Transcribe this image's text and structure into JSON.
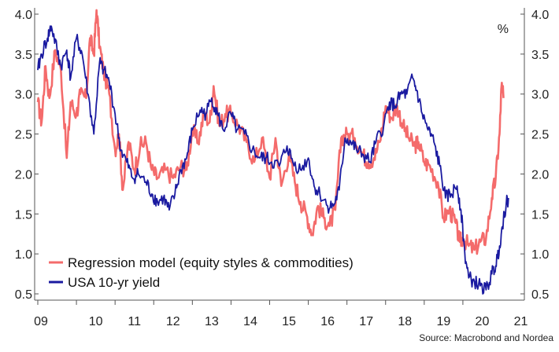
{
  "chart_data": {
    "type": "line",
    "title": "",
    "unit_label": "%",
    "source": "Source: Macrobond and Nordea",
    "ylim": [
      0.5,
      4.0
    ],
    "yticks": [
      "0.5",
      "1.0",
      "1.5",
      "2.0",
      "2.5",
      "3.0",
      "3.5",
      "4.0"
    ],
    "xlim": [
      2009.0,
      2021.5
    ],
    "xticks": [
      "09",
      "10",
      "11",
      "12",
      "13",
      "14",
      "15",
      "16",
      "17",
      "18",
      "19",
      "20",
      "21"
    ],
    "grid": false,
    "legend_position": "bottom-left",
    "colors": {
      "regression": "#f46b6b",
      "yield": "#1a1aa0",
      "axis": "#555555"
    },
    "series": [
      {
        "key": "regression",
        "name": "Regression model (equity styles & commodities)",
        "color": "#f46b6b",
        "points": [
          [
            2009.0,
            2.9
          ],
          [
            2009.1,
            2.65
          ],
          [
            2009.2,
            3.35
          ],
          [
            2009.3,
            2.95
          ],
          [
            2009.45,
            3.55
          ],
          [
            2009.6,
            3.3
          ],
          [
            2009.75,
            2.2
          ],
          [
            2009.85,
            2.9
          ],
          [
            2010.0,
            2.75
          ],
          [
            2010.1,
            3.0
          ],
          [
            2010.25,
            2.95
          ],
          [
            2010.35,
            3.7
          ],
          [
            2010.45,
            3.5
          ],
          [
            2010.52,
            4.05
          ],
          [
            2010.6,
            3.6
          ],
          [
            2010.7,
            3.3
          ],
          [
            2010.85,
            3.0
          ],
          [
            2011.0,
            2.3
          ],
          [
            2011.1,
            2.5
          ],
          [
            2011.2,
            1.8
          ],
          [
            2011.35,
            2.4
          ],
          [
            2011.5,
            2.05
          ],
          [
            2011.65,
            2.35
          ],
          [
            2011.8,
            2.4
          ],
          [
            2011.95,
            2.05
          ],
          [
            2012.1,
            1.95
          ],
          [
            2012.3,
            2.05
          ],
          [
            2012.5,
            1.95
          ],
          [
            2012.7,
            2.1
          ],
          [
            2012.85,
            2.05
          ],
          [
            2013.0,
            2.55
          ],
          [
            2013.15,
            2.4
          ],
          [
            2013.3,
            2.75
          ],
          [
            2013.45,
            2.65
          ],
          [
            2013.55,
            3.1
          ],
          [
            2013.7,
            2.6
          ],
          [
            2013.85,
            2.75
          ],
          [
            2014.0,
            2.75
          ],
          [
            2014.2,
            2.6
          ],
          [
            2014.4,
            2.4
          ],
          [
            2014.6,
            2.15
          ],
          [
            2014.8,
            2.45
          ],
          [
            2015.0,
            1.95
          ],
          [
            2015.15,
            2.45
          ],
          [
            2015.3,
            1.85
          ],
          [
            2015.5,
            2.25
          ],
          [
            2015.65,
            1.9
          ],
          [
            2015.8,
            1.65
          ],
          [
            2015.95,
            1.5
          ],
          [
            2016.1,
            1.25
          ],
          [
            2016.25,
            1.6
          ],
          [
            2016.4,
            1.45
          ],
          [
            2016.55,
            1.35
          ],
          [
            2016.7,
            1.55
          ],
          [
            2016.85,
            2.45
          ],
          [
            2017.0,
            2.5
          ],
          [
            2017.2,
            2.45
          ],
          [
            2017.4,
            2.25
          ],
          [
            2017.55,
            2.15
          ],
          [
            2017.7,
            2.2
          ],
          [
            2017.85,
            2.4
          ],
          [
            2018.0,
            2.85
          ],
          [
            2018.15,
            2.7
          ],
          [
            2018.3,
            2.85
          ],
          [
            2018.45,
            2.6
          ],
          [
            2018.6,
            2.45
          ],
          [
            2018.75,
            2.35
          ],
          [
            2018.85,
            2.4
          ],
          [
            2019.0,
            2.15
          ],
          [
            2019.15,
            2.1
          ],
          [
            2019.35,
            1.9
          ],
          [
            2019.5,
            1.45
          ],
          [
            2019.65,
            1.55
          ],
          [
            2019.8,
            1.4
          ],
          [
            2019.92,
            1.15
          ],
          [
            2020.0,
            1.2
          ],
          [
            2020.15,
            1.1
          ],
          [
            2020.3,
            1.05
          ],
          [
            2020.45,
            1.15
          ],
          [
            2020.6,
            1.2
          ],
          [
            2020.75,
            1.7
          ],
          [
            2020.85,
            1.95
          ],
          [
            2020.95,
            2.5
          ],
          [
            2021.0,
            3.1
          ],
          [
            2021.05,
            2.95
          ]
        ]
      },
      {
        "key": "yield",
        "name": "USA 10-yr yield",
        "color": "#1a1aa0",
        "points": [
          [
            2009.0,
            3.3
          ],
          [
            2009.1,
            3.5
          ],
          [
            2009.25,
            3.7
          ],
          [
            2009.35,
            3.85
          ],
          [
            2009.5,
            3.55
          ],
          [
            2009.6,
            3.35
          ],
          [
            2009.75,
            3.55
          ],
          [
            2009.85,
            3.2
          ],
          [
            2010.0,
            3.7
          ],
          [
            2010.15,
            3.5
          ],
          [
            2010.3,
            3.0
          ],
          [
            2010.45,
            2.5
          ],
          [
            2010.6,
            3.4
          ],
          [
            2010.7,
            3.3
          ],
          [
            2010.85,
            3.15
          ],
          [
            2011.0,
            2.75
          ],
          [
            2011.15,
            2.3
          ],
          [
            2011.3,
            2.15
          ],
          [
            2011.45,
            1.95
          ],
          [
            2011.6,
            2.0
          ],
          [
            2011.8,
            1.9
          ],
          [
            2011.95,
            1.75
          ],
          [
            2012.1,
            1.65
          ],
          [
            2012.25,
            1.7
          ],
          [
            2012.4,
            1.55
          ],
          [
            2012.55,
            1.75
          ],
          [
            2012.7,
            2.05
          ],
          [
            2012.85,
            2.2
          ],
          [
            2013.0,
            2.55
          ],
          [
            2013.2,
            2.8
          ],
          [
            2013.35,
            2.75
          ],
          [
            2013.5,
            2.95
          ],
          [
            2013.65,
            2.75
          ],
          [
            2013.8,
            2.55
          ],
          [
            2014.0,
            2.75
          ],
          [
            2014.15,
            2.55
          ],
          [
            2014.35,
            2.5
          ],
          [
            2014.55,
            2.3
          ],
          [
            2014.75,
            2.2
          ],
          [
            2014.9,
            2.2
          ],
          [
            2015.05,
            2.15
          ],
          [
            2015.25,
            2.1
          ],
          [
            2015.45,
            2.35
          ],
          [
            2015.6,
            2.15
          ],
          [
            2015.8,
            2.05
          ],
          [
            2016.0,
            2.2
          ],
          [
            2016.15,
            1.85
          ],
          [
            2016.3,
            1.75
          ],
          [
            2016.5,
            1.6
          ],
          [
            2016.65,
            1.6
          ],
          [
            2016.8,
            1.8
          ],
          [
            2016.95,
            2.45
          ],
          [
            2017.1,
            2.4
          ],
          [
            2017.25,
            2.3
          ],
          [
            2017.4,
            2.25
          ],
          [
            2017.6,
            2.15
          ],
          [
            2017.75,
            2.4
          ],
          [
            2017.95,
            2.6
          ],
          [
            2018.1,
            2.9
          ],
          [
            2018.25,
            2.85
          ],
          [
            2018.4,
            3.0
          ],
          [
            2018.55,
            3.0
          ],
          [
            2018.7,
            3.2
          ],
          [
            2018.8,
            3.05
          ],
          [
            2018.95,
            2.75
          ],
          [
            2019.1,
            2.55
          ],
          [
            2019.25,
            2.4
          ],
          [
            2019.4,
            2.1
          ],
          [
            2019.55,
            1.7
          ],
          [
            2019.7,
            1.75
          ],
          [
            2019.85,
            1.85
          ],
          [
            2019.95,
            1.55
          ],
          [
            2020.05,
            1.0
          ],
          [
            2020.15,
            0.7
          ],
          [
            2020.3,
            0.65
          ],
          [
            2020.45,
            0.6
          ],
          [
            2020.6,
            0.55
          ],
          [
            2020.75,
            0.75
          ],
          [
            2020.85,
            0.85
          ],
          [
            2020.95,
            1.1
          ],
          [
            2021.05,
            1.45
          ],
          [
            2021.12,
            1.62
          ],
          [
            2021.18,
            1.7
          ]
        ]
      }
    ]
  }
}
